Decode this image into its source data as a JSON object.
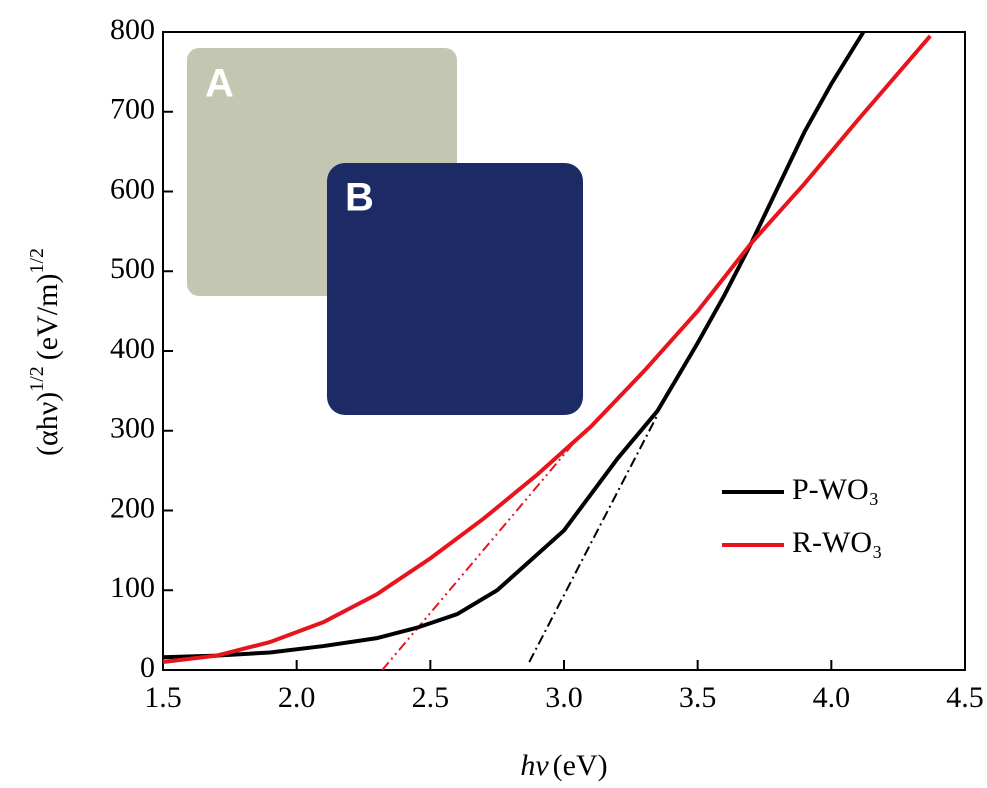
{
  "chart_data": {
    "type": "line",
    "xlabel": {
      "symbol": "hν",
      "unit": "(eV)"
    },
    "ylabel": {
      "base": "(αhν)",
      "exp": "1/2",
      "unit": "(eV/m)",
      "unit_exp": "1/2"
    },
    "xlim": [
      1.5,
      4.5
    ],
    "xticks": [
      1.5,
      {
        "value": 2,
        "label": "2.0"
      },
      2.5,
      {
        "value": 3,
        "label": "3.0"
      },
      3.5,
      {
        "value": 4,
        "label": "4.0"
      },
      4.5
    ],
    "ylim": [
      0,
      800
    ],
    "yticks": [
      0,
      100,
      200,
      300,
      400,
      500,
      600,
      700,
      800
    ],
    "legend": "right",
    "series": [
      {
        "name": "P-WO₃",
        "color": "#000000",
        "x": [
          1.5,
          1.7,
          1.9,
          2.1,
          2.3,
          2.45,
          2.6,
          2.75,
          2.85,
          3.0,
          3.1,
          3.2,
          3.35,
          3.5,
          3.6,
          3.7,
          3.8,
          3.9,
          4.0,
          4.12
        ],
        "values": [
          16,
          18,
          22,
          30,
          40,
          53,
          70,
          100,
          130,
          175,
          220,
          265,
          325,
          410,
          470,
          535,
          605,
          675,
          735,
          800
        ]
      },
      {
        "name": "R-WO₃",
        "color": "#e8141c",
        "x": [
          1.5,
          1.7,
          1.9,
          2.1,
          2.3,
          2.5,
          2.7,
          2.9,
          3.1,
          3.3,
          3.5,
          3.7,
          3.9,
          4.1,
          4.37
        ],
        "values": [
          10,
          18,
          35,
          60,
          95,
          140,
          190,
          245,
          305,
          375,
          450,
          535,
          610,
          690,
          795
        ]
      }
    ],
    "tangents": [
      {
        "color": "#000000",
        "dash": "10 4 2 4",
        "x": [
          2.87,
          3.35
        ],
        "values": [
          10,
          320
        ]
      },
      {
        "color": "#e8141c",
        "dash": "10 4 2 4 2 4",
        "x": [
          2.32,
          3.05
        ],
        "values": [
          0,
          290
        ]
      }
    ],
    "insets": [
      {
        "label": "A",
        "color": "#c3c7b2"
      },
      {
        "label": "B",
        "color": "#1c2a66"
      }
    ]
  }
}
